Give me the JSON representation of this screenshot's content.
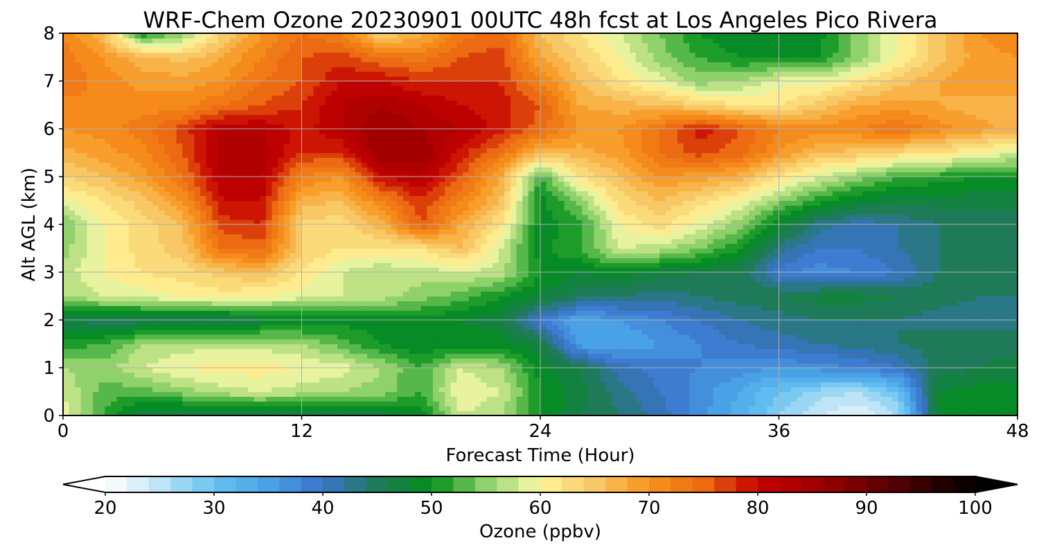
{
  "chart_data": {
    "type": "heatmap",
    "title": "WRF-Chem Ozone  20230901 00UTC 48h fcst at Los Angeles Pico Rivera",
    "xlabel": "Forecast Time (Hour)",
    "ylabel": "Alt AGL (km)",
    "xlim": [
      0,
      48
    ],
    "ylim": [
      0,
      8
    ],
    "x_ticks": [
      0,
      12,
      24,
      36,
      48
    ],
    "y_ticks": [
      0,
      1,
      2,
      3,
      4,
      5,
      6,
      7,
      8
    ],
    "grid": true,
    "x": [
      0,
      2,
      4,
      6,
      8,
      10,
      12,
      14,
      16,
      18,
      20,
      22,
      24,
      26,
      28,
      30,
      32,
      34,
      36,
      38,
      40,
      42,
      44,
      46,
      48
    ],
    "y": [
      0,
      0.5,
      1,
      1.5,
      2,
      2.5,
      3,
      3.5,
      4,
      4.5,
      5,
      5.5,
      6,
      6.5,
      7,
      7.5,
      8
    ],
    "z": [
      [
        59,
        52,
        46,
        45,
        45,
        45,
        45,
        46,
        47,
        49,
        58,
        56,
        50,
        46,
        44,
        41,
        37,
        33,
        28,
        24,
        22,
        26,
        48,
        49,
        49
      ],
      [
        58,
        53,
        53,
        55,
        57,
        58,
        57,
        56,
        55,
        52,
        60,
        58,
        50,
        47,
        43,
        40,
        37,
        34,
        30,
        27,
        26,
        30,
        48,
        49,
        49
      ],
      [
        56,
        55,
        58,
        60,
        61,
        61,
        60,
        59,
        56,
        52,
        58,
        56,
        49,
        46,
        41,
        39,
        38,
        37,
        36,
        37,
        38,
        40,
        45,
        46,
        47
      ],
      [
        51,
        52,
        56,
        57,
        57,
        57,
        56,
        53,
        50,
        48,
        49,
        49,
        47,
        35,
        34,
        36,
        38,
        40,
        41,
        42,
        43,
        44,
        45,
        45,
        45
      ],
      [
        46,
        45,
        45,
        45,
        45,
        47,
        48,
        49,
        49,
        49,
        48,
        47,
        39,
        34,
        36,
        38,
        40,
        42,
        43,
        44,
        44,
        44,
        43,
        43,
        43
      ],
      [
        56,
        58,
        59,
        60,
        61,
        60,
        59,
        58,
        57,
        55,
        53,
        50,
        48,
        45,
        44,
        43,
        44,
        45,
        46,
        47,
        47,
        46,
        45,
        44,
        44
      ],
      [
        57,
        60,
        62,
        63,
        65,
        66,
        62,
        58,
        56,
        57,
        58,
        57,
        50,
        48,
        49,
        47,
        46,
        46,
        39,
        37,
        38,
        40,
        44,
        45,
        45
      ],
      [
        55,
        60,
        63,
        65,
        74,
        75,
        64,
        62,
        62,
        62,
        66,
        58,
        49,
        52,
        58,
        57,
        54,
        50,
        43,
        40,
        40,
        42,
        44,
        44,
        44
      ],
      [
        54,
        60,
        63,
        66,
        77,
        78,
        63,
        63,
        67,
        76,
        68,
        62,
        49,
        51,
        60,
        63,
        59,
        55,
        48,
        43,
        41,
        42,
        44,
        44,
        44
      ],
      [
        59,
        62,
        65,
        70,
        80,
        80,
        67,
        66,
        72,
        78,
        72,
        66,
        49,
        55,
        63,
        66,
        63,
        60,
        55,
        51,
        48,
        47,
        47,
        47,
        47
      ],
      [
        64,
        66,
        69,
        74,
        82,
        82,
        72,
        70,
        80,
        82,
        76,
        68,
        52,
        62,
        66,
        70,
        69,
        67,
        62,
        58,
        55,
        52,
        51,
        50,
        50
      ],
      [
        67,
        69,
        71,
        76,
        83,
        83,
        78,
        78,
        86,
        86,
        79,
        74,
        66,
        67,
        69,
        74,
        77,
        75,
        70,
        66,
        65,
        63,
        62,
        60,
        58
      ],
      [
        70,
        71,
        73,
        77,
        82,
        82,
        79,
        82,
        86,
        84,
        82,
        79,
        75,
        70,
        70,
        74,
        79,
        76,
        72,
        71,
        72,
        74,
        71,
        69,
        67
      ],
      [
        71,
        72,
        71,
        71,
        74,
        76,
        78,
        82,
        84,
        82,
        80,
        79,
        76,
        68,
        67,
        66,
        64,
        62,
        62,
        65,
        68,
        69,
        68,
        67,
        66
      ],
      [
        74,
        71,
        69,
        69,
        70,
        74,
        76,
        80,
        80,
        78,
        78,
        78,
        72,
        66,
        62,
        59,
        55,
        56,
        59,
        59,
        62,
        65,
        68,
        70,
        70
      ],
      [
        73,
        70,
        67,
        65,
        68,
        72,
        76,
        77,
        74,
        73,
        76,
        77,
        68,
        64,
        60,
        55,
        52,
        50,
        50,
        50,
        55,
        60,
        65,
        69,
        70
      ],
      [
        72,
        66,
        50,
        55,
        64,
        70,
        74,
        72,
        64,
        67,
        73,
        75,
        66,
        62,
        58,
        54,
        50,
        48,
        49,
        49,
        55,
        60,
        65,
        70,
        72
      ]
    ],
    "colorbar": {
      "label": "Ozone  (ppbv)",
      "min": 20,
      "max": 100,
      "step": 2,
      "ticks": [
        20,
        30,
        40,
        50,
        60,
        70,
        80,
        90,
        100
      ],
      "extend": "both",
      "stops": [
        [
          20,
          "#ffffff"
        ],
        [
          25,
          "#bfe4f6"
        ],
        [
          30,
          "#66c3f2"
        ],
        [
          35,
          "#4aa2e6"
        ],
        [
          40,
          "#3a72cc"
        ],
        [
          45,
          "#1f7a5a"
        ],
        [
          50,
          "#008f1a"
        ],
        [
          55,
          "#8fd16a"
        ],
        [
          59,
          "#e8f3a0"
        ],
        [
          60,
          "#fff599"
        ],
        [
          65,
          "#f8c866"
        ],
        [
          70,
          "#f7931e"
        ],
        [
          75,
          "#ec6a11"
        ],
        [
          80,
          "#c40000"
        ],
        [
          85,
          "#a20000"
        ],
        [
          90,
          "#700000"
        ],
        [
          95,
          "#3a0000"
        ],
        [
          100,
          "#000000"
        ]
      ]
    }
  }
}
